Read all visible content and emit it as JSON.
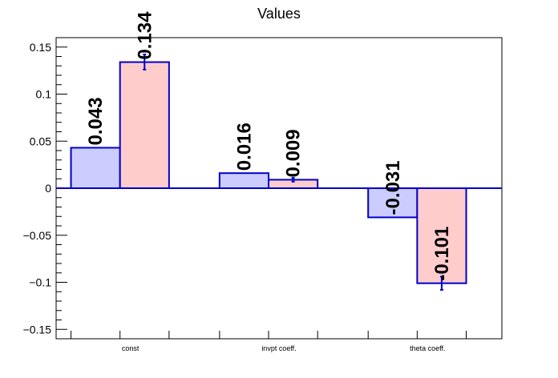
{
  "chart_data": {
    "type": "bar",
    "title": "Values",
    "xlabel": "",
    "ylabel": "",
    "categories": [
      "const",
      "invpt coeff.",
      "theta coeff."
    ],
    "ylim": [
      -0.16,
      0.16
    ],
    "yticks": [
      -0.15,
      -0.1,
      -0.05,
      0,
      0.05,
      0.1,
      0.15
    ],
    "ytick_labels": [
      "−0.15",
      "−0.1",
      "−0.05",
      "0",
      "0.05",
      "0.1",
      "0.15"
    ],
    "grid": false,
    "series": [
      {
        "values": [
          0.043,
          0.016,
          -0.031
        ],
        "labels": [
          "0.043",
          "0.016",
          "-0.031"
        ],
        "errors": [
          0,
          0,
          0
        ],
        "fill": "#ccccff",
        "stroke": "#0000cc"
      },
      {
        "values": [
          0.134,
          0.009,
          -0.101
        ],
        "labels": [
          "0.134",
          "0.009",
          "-0.101"
        ],
        "errors": [
          0.008,
          0.002,
          0.007
        ],
        "fill": "#ffcccc",
        "stroke": "#0000cc"
      }
    ]
  }
}
